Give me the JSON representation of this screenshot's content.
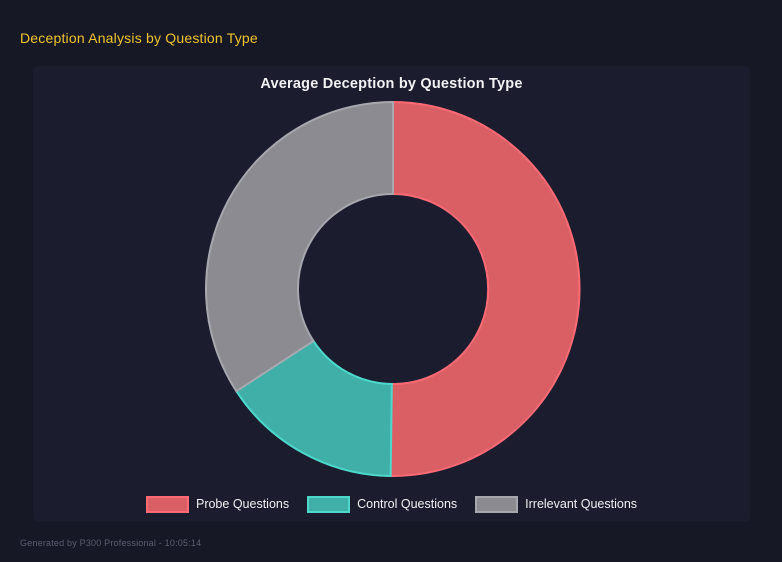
{
  "page": {
    "title": "Deception Analysis by Question Type",
    "footer": "Generated by P300 Professional - 10:05:14"
  },
  "chart_data": {
    "type": "doughnut",
    "title": "Average Deception by Question Type",
    "labels": [
      "Probe Questions",
      "Control Questions",
      "Irrelevant Questions"
    ],
    "values_percent": [
      50.2,
      15.6,
      34.2
    ],
    "start_angle_deg": 0,
    "direction": "clockwise",
    "inner_radius_ratio": 0.51,
    "legend_position": "bottom",
    "colors": {
      "fill": [
        "#d95f65",
        "#3fafa8",
        "#8b8b91"
      ],
      "border": [
        "#ff6a75",
        "#4dd8cc",
        "#a7a7af"
      ]
    }
  },
  "theme": {
    "page_bg": "#171826",
    "panel_bg": "#1b1c2e",
    "page_title_color": "#eec32d",
    "chart_title_color": "#f2f2f5",
    "legend_text_color": "#f0f0f3",
    "footer_color": "#5a5e6e"
  }
}
